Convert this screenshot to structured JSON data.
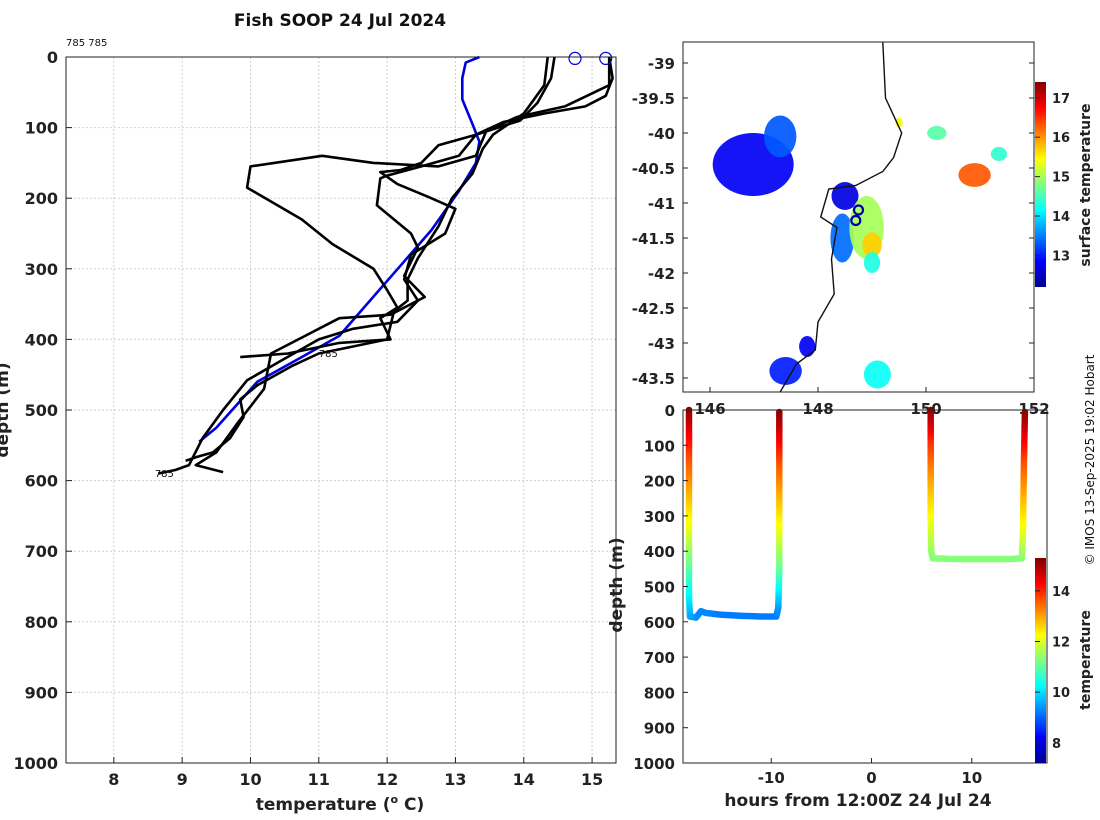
{
  "chart_data": [
    {
      "type": "line",
      "title": "Fish SOOP 24 Jul 2024",
      "xlabel_main": "temperature (",
      "xlabel_sup": "o",
      "xlabel_end": " C)",
      "ylabel": "depth (m)",
      "xlim": [
        7.3,
        15.35
      ],
      "ylim": [
        0,
        1000
      ],
      "xticks": [
        8,
        9,
        10,
        11,
        12,
        13,
        14,
        15
      ],
      "yticks": [
        0,
        100,
        200,
        300,
        400,
        500,
        600,
        700,
        800,
        900,
        1000
      ],
      "top_annotation": "785 785",
      "annotations": [
        {
          "text": "785",
          "x": 11.0,
          "y": 425
        },
        {
          "text": "785",
          "x": 8.6,
          "y": 595
        }
      ],
      "series": [
        {
          "name": "reference profile",
          "color": "#0000dd",
          "points": [
            [
              13.35,
              0
            ],
            [
              13.15,
              8
            ],
            [
              13.1,
              30
            ],
            [
              13.1,
              60
            ],
            [
              13.25,
              95
            ],
            [
              13.35,
              120
            ],
            [
              13.3,
              150
            ],
            [
              13.05,
              190
            ],
            [
              12.65,
              245
            ],
            [
              12.2,
              295
            ],
            [
              11.75,
              345
            ],
            [
              11.3,
              395
            ],
            [
              10.75,
              425
            ],
            [
              10.1,
              460
            ],
            [
              9.5,
              525
            ],
            [
              9.25,
              545
            ]
          ]
        },
        {
          "name": "profile 1",
          "color": "#000000",
          "points": [
            [
              14.35,
              0
            ],
            [
              14.3,
              40
            ],
            [
              14.0,
              80
            ],
            [
              13.55,
              110
            ],
            [
              13.4,
              130
            ],
            [
              13.25,
              165
            ],
            [
              12.95,
              200
            ],
            [
              12.75,
              240
            ],
            [
              12.45,
              285
            ],
            [
              12.3,
              315
            ],
            [
              12.3,
              345
            ],
            [
              12.1,
              360
            ],
            [
              12.0,
              400
            ],
            [
              11.5,
              410
            ],
            [
              11.0,
              420
            ],
            [
              10.6,
              438
            ],
            [
              10.1,
              465
            ],
            [
              9.85,
              485
            ],
            [
              9.9,
              510
            ],
            [
              9.7,
              540
            ],
            [
              9.45,
              560
            ],
            [
              9.2,
              567
            ],
            [
              9.05,
              572
            ]
          ]
        },
        {
          "name": "profile 2",
          "color": "#000000",
          "points": [
            [
              14.45,
              0
            ],
            [
              14.4,
              30
            ],
            [
              14.2,
              65
            ],
            [
              13.95,
              90
            ],
            [
              13.3,
              110
            ],
            [
              12.75,
              125
            ],
            [
              12.5,
              150
            ],
            [
              12.2,
              160
            ],
            [
              11.9,
              163
            ],
            [
              12.15,
              180
            ],
            [
              12.6,
              198
            ],
            [
              13.0,
              215
            ],
            [
              12.85,
              250
            ],
            [
              12.35,
              280
            ],
            [
              12.25,
              315
            ],
            [
              12.45,
              345
            ],
            [
              12.15,
              375
            ],
            [
              11.5,
              385
            ],
            [
              11.0,
              400
            ],
            [
              10.45,
              430
            ],
            [
              9.95,
              458
            ],
            [
              9.6,
              500
            ],
            [
              9.3,
              540
            ],
            [
              9.1,
              578
            ],
            [
              8.9,
              585
            ],
            [
              8.65,
              590
            ]
          ]
        },
        {
          "name": "profile 3",
          "color": "#000000",
          "points": [
            [
              15.25,
              0
            ],
            [
              15.3,
              30
            ],
            [
              15.2,
              55
            ],
            [
              14.9,
              70
            ],
            [
              14.3,
              80
            ],
            [
              13.7,
              92
            ],
            [
              13.3,
              110
            ],
            [
              13.05,
              140
            ],
            [
              12.5,
              155
            ],
            [
              12.0,
              168
            ],
            [
              11.9,
              172
            ],
            [
              11.85,
              210
            ],
            [
              12.35,
              250
            ],
            [
              12.45,
              270
            ],
            [
              12.25,
              310
            ],
            [
              12.55,
              340
            ],
            [
              12.05,
              365
            ],
            [
              11.3,
              370
            ],
            [
              10.8,
              395
            ],
            [
              10.3,
              420
            ],
            [
              10.2,
              470
            ],
            [
              9.8,
              520
            ],
            [
              9.5,
              560
            ],
            [
              9.2,
              578
            ],
            [
              9.6,
              588
            ]
          ]
        },
        {
          "name": "profile 4",
          "color": "#000000",
          "points": [
            [
              15.25,
              0
            ],
            [
              15.25,
              40
            ],
            [
              14.6,
              70
            ],
            [
              13.9,
              85
            ],
            [
              13.45,
              105
            ],
            [
              13.3,
              140
            ],
            [
              12.75,
              155
            ],
            [
              11.8,
              150
            ],
            [
              11.05,
              140
            ],
            [
              10.0,
              155
            ],
            [
              9.95,
              185
            ],
            [
              10.75,
              230
            ],
            [
              11.2,
              265
            ],
            [
              11.8,
              300
            ],
            [
              12.0,
              330
            ],
            [
              12.15,
              355
            ],
            [
              11.9,
              370
            ],
            [
              12.05,
              400
            ],
            [
              11.3,
              405
            ],
            [
              10.55,
              420
            ],
            [
              9.85,
              425
            ]
          ]
        }
      ],
      "surface_markers": [
        {
          "x": 14.75,
          "y": 2
        },
        {
          "x": 15.2,
          "y": 2
        }
      ]
    },
    {
      "type": "heatmap",
      "xticks": [
        146,
        148,
        150,
        152
      ],
      "yticks": [
        -39,
        -39.5,
        -40,
        -40.5,
        -41,
        -41.5,
        -42,
        -42.5,
        -43,
        -43.5
      ],
      "xlim": [
        145.5,
        152.0
      ],
      "ylim": [
        -43.7,
        -38.7
      ],
      "colorbar_label": "surface temperature",
      "colorbar_ticks": [
        13,
        14,
        15,
        16,
        17
      ],
      "colorbar_range": [
        12.2,
        17.4
      ],
      "coast": [
        [
          149.2,
          -38.7
        ],
        [
          149.25,
          -39.5
        ],
        [
          149.55,
          -40.0
        ],
        [
          149.4,
          -40.35
        ],
        [
          149.2,
          -40.55
        ],
        [
          148.7,
          -40.75
        ],
        [
          148.2,
          -40.8
        ],
        [
          148.05,
          -41.2
        ],
        [
          148.35,
          -41.35
        ],
        [
          148.25,
          -41.8
        ],
        [
          148.3,
          -42.3
        ],
        [
          148.0,
          -42.7
        ],
        [
          147.95,
          -43.1
        ],
        [
          147.6,
          -43.3
        ],
        [
          147.3,
          -43.7
        ]
      ],
      "markers": [
        {
          "lon": 148.75,
          "lat": -41.1
        },
        {
          "lon": 148.7,
          "lat": -41.25
        }
      ],
      "patches": [
        {
          "lon": 146.8,
          "lat": -40.45,
          "rx": 0.75,
          "ry": 0.45,
          "temp": 12.8
        },
        {
          "lon": 147.3,
          "lat": -40.05,
          "rx": 0.3,
          "ry": 0.3,
          "temp": 13.3
        },
        {
          "lon": 148.5,
          "lat": -40.9,
          "rx": 0.25,
          "ry": 0.2,
          "temp": 12.7
        },
        {
          "lon": 148.45,
          "lat": -41.5,
          "rx": 0.22,
          "ry": 0.35,
          "temp": 13.4
        },
        {
          "lon": 148.9,
          "lat": -41.35,
          "rx": 0.32,
          "ry": 0.45,
          "temp": 15.0
        },
        {
          "lon": 149.0,
          "lat": -41.6,
          "rx": 0.18,
          "ry": 0.18,
          "temp": 15.7
        },
        {
          "lon": 149.0,
          "lat": -41.85,
          "rx": 0.15,
          "ry": 0.15,
          "temp": 14.3
        },
        {
          "lon": 150.9,
          "lat": -40.6,
          "rx": 0.3,
          "ry": 0.17,
          "temp": 16.3
        },
        {
          "lon": 150.2,
          "lat": -40.0,
          "rx": 0.18,
          "ry": 0.1,
          "temp": 14.6
        },
        {
          "lon": 149.5,
          "lat": -39.85,
          "rx": 0.07,
          "ry": 0.07,
          "temp": 15.4
        },
        {
          "lon": 151.35,
          "lat": -40.3,
          "rx": 0.15,
          "ry": 0.1,
          "temp": 14.4
        },
        {
          "lon": 149.1,
          "lat": -43.45,
          "rx": 0.25,
          "ry": 0.2,
          "temp": 14.2
        },
        {
          "lon": 147.4,
          "lat": -43.4,
          "rx": 0.3,
          "ry": 0.2,
          "temp": 13.0
        },
        {
          "lon": 147.8,
          "lat": -43.05,
          "rx": 0.15,
          "ry": 0.15,
          "temp": 12.8
        }
      ]
    },
    {
      "type": "scatter",
      "xlabel": "hours from 12:00Z 24 Jul 24",
      "ylabel": "depth (m)",
      "xlim": [
        -18.8,
        17.5
      ],
      "ylim": [
        0,
        1000
      ],
      "xticks": [
        -10,
        0,
        10
      ],
      "yticks": [
        0,
        100,
        200,
        300,
        400,
        500,
        600,
        700,
        800,
        900,
        1000
      ],
      "colorbar_label": "temperature",
      "colorbar_ticks": [
        8,
        10,
        12,
        14
      ],
      "colorbar_range": [
        7.2,
        15.3
      ],
      "series": [
        {
          "name": "dive 1",
          "points": [
            [
              -18.2,
              0,
              15.2
            ],
            [
              -18.2,
              60,
              14.5
            ],
            [
              -18.2,
              150,
              13.6
            ],
            [
              -18.2,
              250,
              12.8
            ],
            [
              -18.2,
              350,
              12.0
            ],
            [
              -18.2,
              450,
              11.0
            ],
            [
              -18.2,
              530,
              10.2
            ],
            [
              -18.1,
              585,
              9.6
            ],
            [
              -17.5,
              588,
              9.4
            ],
            [
              -17.0,
              570,
              9.3
            ],
            [
              -16.5,
              575,
              9.3
            ],
            [
              -15.0,
              580,
              9.2
            ],
            [
              -13.0,
              583,
              9.2
            ],
            [
              -11.0,
              585,
              9.2
            ],
            [
              -9.5,
              585,
              9.2
            ],
            [
              -9.3,
              560,
              9.4
            ],
            [
              -9.2,
              450,
              11.0
            ],
            [
              -9.2,
              350,
              12.0
            ],
            [
              -9.2,
              250,
              12.8
            ],
            [
              -9.2,
              150,
              13.6
            ],
            [
              -9.2,
              0,
              15.2
            ]
          ]
        },
        {
          "name": "dive 2",
          "points": [
            [
              5.9,
              0,
              15.2
            ],
            [
              5.9,
              100,
              13.9
            ],
            [
              5.9,
              200,
              13.0
            ],
            [
              5.9,
              300,
              12.3
            ],
            [
              5.95,
              400,
              11.5
            ],
            [
              6.1,
              420,
              11.3
            ],
            [
              8.0,
              422,
              11.3
            ],
            [
              10.0,
              422,
              11.3
            ],
            [
              12.0,
              422,
              11.3
            ],
            [
              14.0,
              422,
              11.3
            ],
            [
              15.0,
              420,
              11.3
            ],
            [
              15.1,
              350,
              12.0
            ],
            [
              15.15,
              250,
              12.8
            ],
            [
              15.2,
              150,
              13.6
            ],
            [
              15.3,
              0,
              15.2
            ]
          ]
        }
      ]
    }
  ],
  "credit": "© IMOS 13-Sep-2025 19:02 Hobart"
}
